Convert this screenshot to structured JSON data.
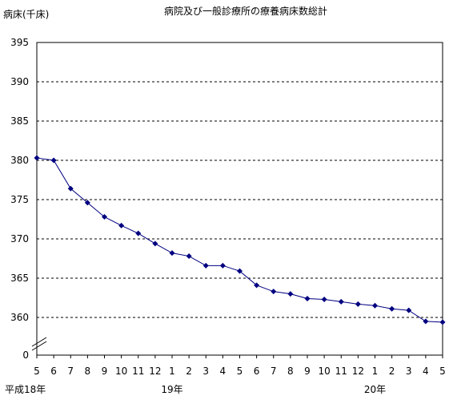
{
  "chart_data": {
    "type": "line",
    "title": "病院及び一般診療所の療養病床数総計",
    "ylabel": "病床(千床)",
    "xlabel": "",
    "ylim": [
      360,
      395
    ],
    "y_ticks": [
      "395",
      "390",
      "385",
      "380",
      "375",
      "370",
      "365",
      "360",
      "0"
    ],
    "axis_break": true,
    "categories": [
      "5",
      "6",
      "7",
      "8",
      "9",
      "10",
      "11",
      "12",
      "1",
      "2",
      "3",
      "4",
      "5",
      "6",
      "7",
      "8",
      "9",
      "10",
      "11",
      "12",
      "1",
      "2",
      "3",
      "4",
      "5"
    ],
    "year_labels": [
      {
        "text": "平成18年",
        "category_index": 0
      },
      {
        "text": "19年",
        "category_index": 8
      },
      {
        "text": "20年",
        "category_index": 20
      }
    ],
    "grid": "horizontal dashed",
    "series": [
      {
        "color": "#000080",
        "marker": "diamond",
        "values": [
          380.3,
          380.0,
          376.4,
          374.6,
          372.8,
          371.7,
          370.7,
          369.4,
          368.2,
          367.8,
          366.6,
          366.6,
          365.9,
          364.1,
          363.3,
          363.0,
          362.4,
          362.3,
          362.0,
          361.7,
          361.5,
          361.1,
          360.9,
          359.5,
          359.4
        ]
      }
    ]
  }
}
